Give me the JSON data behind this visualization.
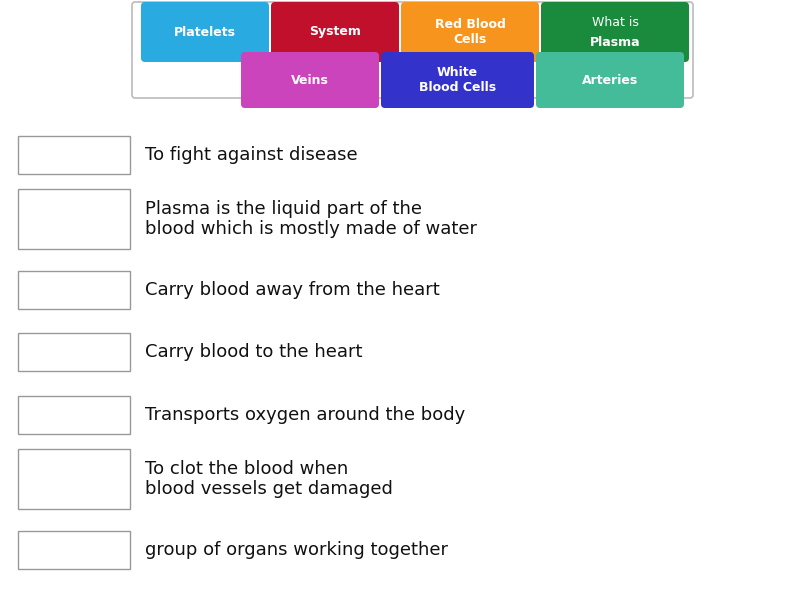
{
  "background_color": "#ffffff",
  "word_bank": {
    "row1": [
      {
        "label": "Platelets",
        "color": "#29ABE2",
        "text_color": "#ffffff",
        "bold": true
      },
      {
        "label": "System",
        "color": "#C0102C",
        "text_color": "#ffffff",
        "bold": true
      },
      {
        "label": "Red Blood\nCells",
        "color": "#F7941D",
        "text_color": "#ffffff",
        "bold": true
      },
      {
        "label": "What is\nPlasma",
        "color": "#1A8A3C",
        "text_color": "#ffffff",
        "bold_second": true
      }
    ],
    "row2": [
      {
        "label": "Veins",
        "color": "#CC44BB",
        "text_color": "#ffffff",
        "bold": true
      },
      {
        "label": "White\nBlood Cells",
        "color": "#3333CC",
        "text_color": "#ffffff",
        "bold": true
      },
      {
        "label": "Arteries",
        "color": "#44BB99",
        "text_color": "#ffffff",
        "bold": true
      }
    ]
  },
  "clues": [
    {
      "text": "To fight against disease",
      "multiline": false
    },
    {
      "text": "Plasma is the liquid part of the\nblood which is mostly made of water",
      "multiline": true
    },
    {
      "text": "Carry blood away from the heart",
      "multiline": false
    },
    {
      "text": "Carry blood to the heart",
      "multiline": false
    },
    {
      "text": "Transports oxygen around the body",
      "multiline": false
    },
    {
      "text": "To clot the blood when\nblood vessels get damaged",
      "multiline": true
    },
    {
      "text": "group of organs working together",
      "multiline": false
    }
  ],
  "wordbank_border_color": "#bbbbbb",
  "answer_box_border": "#999999"
}
